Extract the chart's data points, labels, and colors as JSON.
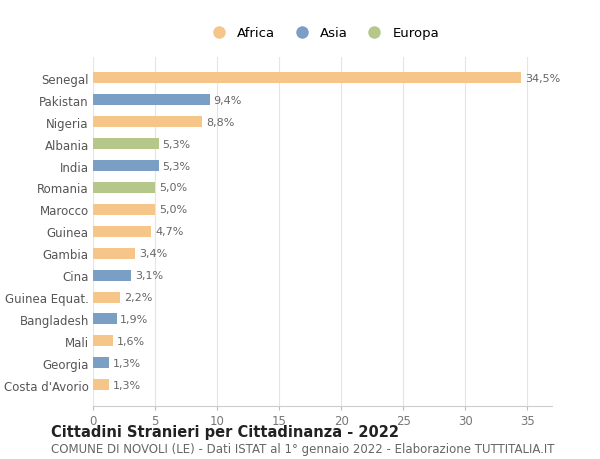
{
  "categories": [
    "Costa d'Avorio",
    "Georgia",
    "Mali",
    "Bangladesh",
    "Guinea Equat.",
    "Cina",
    "Gambia",
    "Guinea",
    "Marocco",
    "Romania",
    "India",
    "Albania",
    "Nigeria",
    "Pakistan",
    "Senegal"
  ],
  "values": [
    1.3,
    1.3,
    1.6,
    1.9,
    2.2,
    3.1,
    3.4,
    4.7,
    5.0,
    5.0,
    5.3,
    5.3,
    8.8,
    9.4,
    34.5
  ],
  "labels": [
    "1,3%",
    "1,3%",
    "1,6%",
    "1,9%",
    "2,2%",
    "3,1%",
    "3,4%",
    "4,7%",
    "5,0%",
    "5,0%",
    "5,3%",
    "5,3%",
    "8,8%",
    "9,4%",
    "34,5%"
  ],
  "continents": [
    "Africa",
    "Asia",
    "Africa",
    "Asia",
    "Africa",
    "Asia",
    "Africa",
    "Africa",
    "Africa",
    "Europa",
    "Asia",
    "Europa",
    "Africa",
    "Asia",
    "Africa"
  ],
  "colors": {
    "Africa": "#F5C58A",
    "Asia": "#7B9FC4",
    "Europa": "#B5C78A"
  },
  "xlim": [
    0,
    37
  ],
  "xticks": [
    0,
    5,
    10,
    15,
    20,
    25,
    30,
    35
  ],
  "title": "Cittadini Stranieri per Cittadinanza - 2022",
  "subtitle": "COMUNE DI NOVOLI (LE) - Dati ISTAT al 1° gennaio 2022 - Elaborazione TUTTITALIA.IT",
  "title_fontsize": 10.5,
  "subtitle_fontsize": 8.5,
  "background_color": "#ffffff",
  "bar_height": 0.5,
  "label_fontsize": 8,
  "ytick_fontsize": 8.5,
  "xtick_fontsize": 8.5,
  "legend_order": [
    "Africa",
    "Asia",
    "Europa"
  ]
}
